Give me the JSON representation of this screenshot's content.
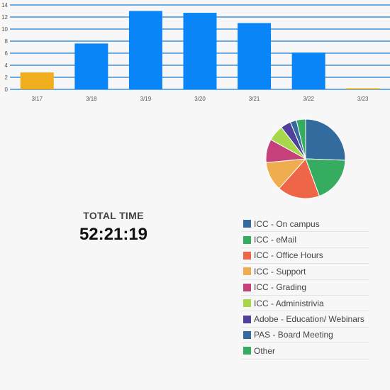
{
  "chart_data": [
    {
      "type": "bar",
      "categories": [
        "3/17",
        "3/18",
        "3/19",
        "3/20",
        "3/21",
        "3/22",
        "3/23"
      ],
      "values": [
        2.8,
        7.6,
        13,
        12.7,
        11,
        6.1,
        0.1
      ],
      "bar_colors": [
        "#f0ae1e",
        "#0a85f7",
        "#0a85f7",
        "#0a85f7",
        "#0a85f7",
        "#0a85f7",
        "#f0ae1e"
      ],
      "ylim": [
        0,
        14
      ],
      "yticks": [
        0,
        2,
        4,
        6,
        8,
        10,
        12,
        14
      ],
      "grid": true,
      "grid_color": "#1a7fd8"
    },
    {
      "type": "pie",
      "labels": [
        "ICC - On campus",
        "ICC - eMail",
        "ICC - Office Hours",
        "ICC - Support",
        "ICC - Grading",
        "ICC - Administrivia",
        "Adobe - Education/ Webinars",
        "PAS - Board Meeting",
        "Other"
      ],
      "values": [
        25.2,
        18.5,
        17.0,
        11.7,
        9.4,
        6.4,
        4.1,
        2.5,
        3.7
      ],
      "colors": [
        "#336b9e",
        "#35ac60",
        "#ef6548",
        "#efad4f",
        "#c6407c",
        "#a6d84a",
        "#50409c",
        "#336b9e",
        "#35ac60"
      ],
      "legend": "bottom"
    }
  ],
  "summary": {
    "label": "TOTAL TIME",
    "value": "52:21:19"
  }
}
